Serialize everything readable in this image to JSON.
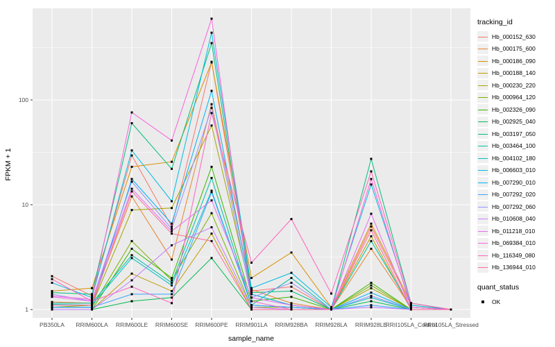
{
  "figure": {
    "background": "#FFFFFF",
    "panel_bg": "#EBEBEB",
    "grid_color": "#FFFFFF",
    "tick_label_color": "#4D4D4D",
    "point_color": "#000000"
  },
  "axes": {
    "x_title": "sample_name",
    "y_title": "FPKM + 1",
    "y_tick_labels": [
      "1",
      "10",
      "100"
    ],
    "y_tick_values": [
      1,
      10,
      100
    ],
    "y_minor_values": [
      3.1623,
      31.623,
      316.23
    ],
    "scale": "log10"
  },
  "legend": {
    "color_title": "tracking_id",
    "shape_title": "quant_status",
    "shape_items": [
      {
        "label": "OK"
      }
    ]
  },
  "chart_data": {
    "type": "line",
    "title": "",
    "xlabel": "sample_name",
    "ylabel": "FPKM + 1",
    "y_scale": "log10",
    "ylim": [
      1,
      700
    ],
    "grid": true,
    "legend_position": "right",
    "point_shape": "filled-square",
    "categories": [
      "PB350LA",
      "RRIM600LA",
      "RRIM600LE",
      "RRIM600SE",
      "RRIM600PE",
      "RRIM901LA",
      "RRIM928BA",
      "RRIM928LA",
      "RRIM928LE",
      "RRII105LA_Control",
      "RRII105LA_Stressed"
    ],
    "series": [
      {
        "name": "Hb_000152_630",
        "color": "#F8766D",
        "values": [
          2.08,
          1.35,
          29.5,
          6.2,
          231,
          1.5,
          1.65,
          1.0,
          6.2,
          1.1,
          1.0
        ]
      },
      {
        "name": "Hb_000175_600",
        "color": "#EA8331",
        "values": [
          1.18,
          1.15,
          12,
          3.0,
          91,
          1.55,
          1.15,
          1.0,
          3.8,
          1.05,
          1.0
        ]
      },
      {
        "name": "Hb_000186_090",
        "color": "#D89000",
        "values": [
          1.5,
          1.6,
          23,
          25.7,
          228,
          2.0,
          3.5,
          1.05,
          6.6,
          1.15,
          1.0
        ]
      },
      {
        "name": "Hb_000188_140",
        "color": "#C09B00",
        "values": [
          1.0,
          1.0,
          2.2,
          1.5,
          5.3,
          1.0,
          1.0,
          1.0,
          5.0,
          1.0,
          1.0
        ]
      },
      {
        "name": "Hb_000230_220",
        "color": "#A3A500",
        "values": [
          1.05,
          1.1,
          8.9,
          9.3,
          57,
          1.4,
          1.1,
          1.0,
          1.6,
          1.0,
          1.0
        ]
      },
      {
        "name": "Hb_000964_120",
        "color": "#7CAE00",
        "values": [
          1.05,
          1.05,
          4.5,
          1.9,
          8.3,
          1.05,
          1.05,
          1.0,
          1.7,
          1.0,
          1.0
        ]
      },
      {
        "name": "Hb_002326_090",
        "color": "#39B600",
        "values": [
          1.0,
          1.0,
          3.8,
          2.0,
          23,
          1.2,
          1.32,
          1.0,
          1.8,
          1.0,
          1.0
        ]
      },
      {
        "name": "Hb_002925_040",
        "color": "#00BB4E",
        "values": [
          1.0,
          1.0,
          1.2,
          1.3,
          3.1,
          1.0,
          1.0,
          1.0,
          1.2,
          1.0,
          1.0
        ]
      },
      {
        "name": "Hb_003197_050",
        "color": "#00BF7D",
        "values": [
          1.45,
          1.4,
          60,
          22,
          349,
          1.45,
          1.5,
          1.0,
          27.4,
          1.15,
          1.0
        ]
      },
      {
        "name": "Hb_003464_100",
        "color": "#00C1A3",
        "values": [
          1.15,
          1.15,
          3.3,
          1.8,
          18,
          1.1,
          2.0,
          1.0,
          4.5,
          1.05,
          1.0
        ]
      },
      {
        "name": "Hb_004102_180",
        "color": "#00BFC4",
        "values": [
          1.12,
          1.1,
          3.1,
          1.7,
          13.6,
          1.1,
          1.05,
          1.0,
          1.3,
          1.0,
          1.0
        ]
      },
      {
        "name": "Hb_006603_010",
        "color": "#00BAE0",
        "values": [
          1.8,
          1.3,
          33,
          10.8,
          438,
          1.6,
          2.24,
          1.05,
          15.6,
          1.1,
          1.0
        ]
      },
      {
        "name": "Hb_007290_010",
        "color": "#00B0F6",
        "values": [
          1.05,
          1.05,
          17.6,
          6.6,
          122,
          1.4,
          1.1,
          1.0,
          1.45,
          1.0,
          1.0
        ]
      },
      {
        "name": "Hb_007292_020",
        "color": "#35A2FF",
        "values": [
          1.05,
          1.05,
          1.4,
          1.4,
          13.2,
          1.1,
          1.05,
          1.0,
          1.1,
          1.0,
          1.0
        ]
      },
      {
        "name": "Hb_007292_060",
        "color": "#9590FF",
        "values": [
          1.4,
          1.2,
          16.6,
          5.9,
          84,
          1.3,
          1.8,
          1.0,
          1.35,
          1.0,
          1.0
        ]
      },
      {
        "name": "Hb_010608_040",
        "color": "#C77CFF",
        "values": [
          1.0,
          1.0,
          1.9,
          4.1,
          6.1,
          1.05,
          1.0,
          1.0,
          1.05,
          1.0,
          1.0
        ]
      },
      {
        "name": "Hb_011218_010",
        "color": "#E76BF3",
        "values": [
          1.32,
          1.2,
          14.2,
          5.6,
          11,
          1.3,
          1.1,
          1.0,
          8.2,
          1.0,
          1.0
        ]
      },
      {
        "name": "Hb_069384_010",
        "color": "#FA62DB",
        "values": [
          1.35,
          1.25,
          76,
          41,
          596,
          1.2,
          1.0,
          1.0,
          17.6,
          1.05,
          1.0
        ]
      },
      {
        "name": "Hb_116349_080",
        "color": "#FF62BC",
        "values": [
          1.95,
          1.2,
          1.65,
          1.15,
          75,
          2.8,
          7.3,
          1.42,
          20.8,
          1.15,
          1.0
        ]
      },
      {
        "name": "Hb_136944_010",
        "color": "#FF6A98",
        "values": [
          1.1,
          1.1,
          13.4,
          5.3,
          4.5,
          1.0,
          1.0,
          1.0,
          5.7,
          1.0,
          1.0
        ]
      }
    ]
  }
}
